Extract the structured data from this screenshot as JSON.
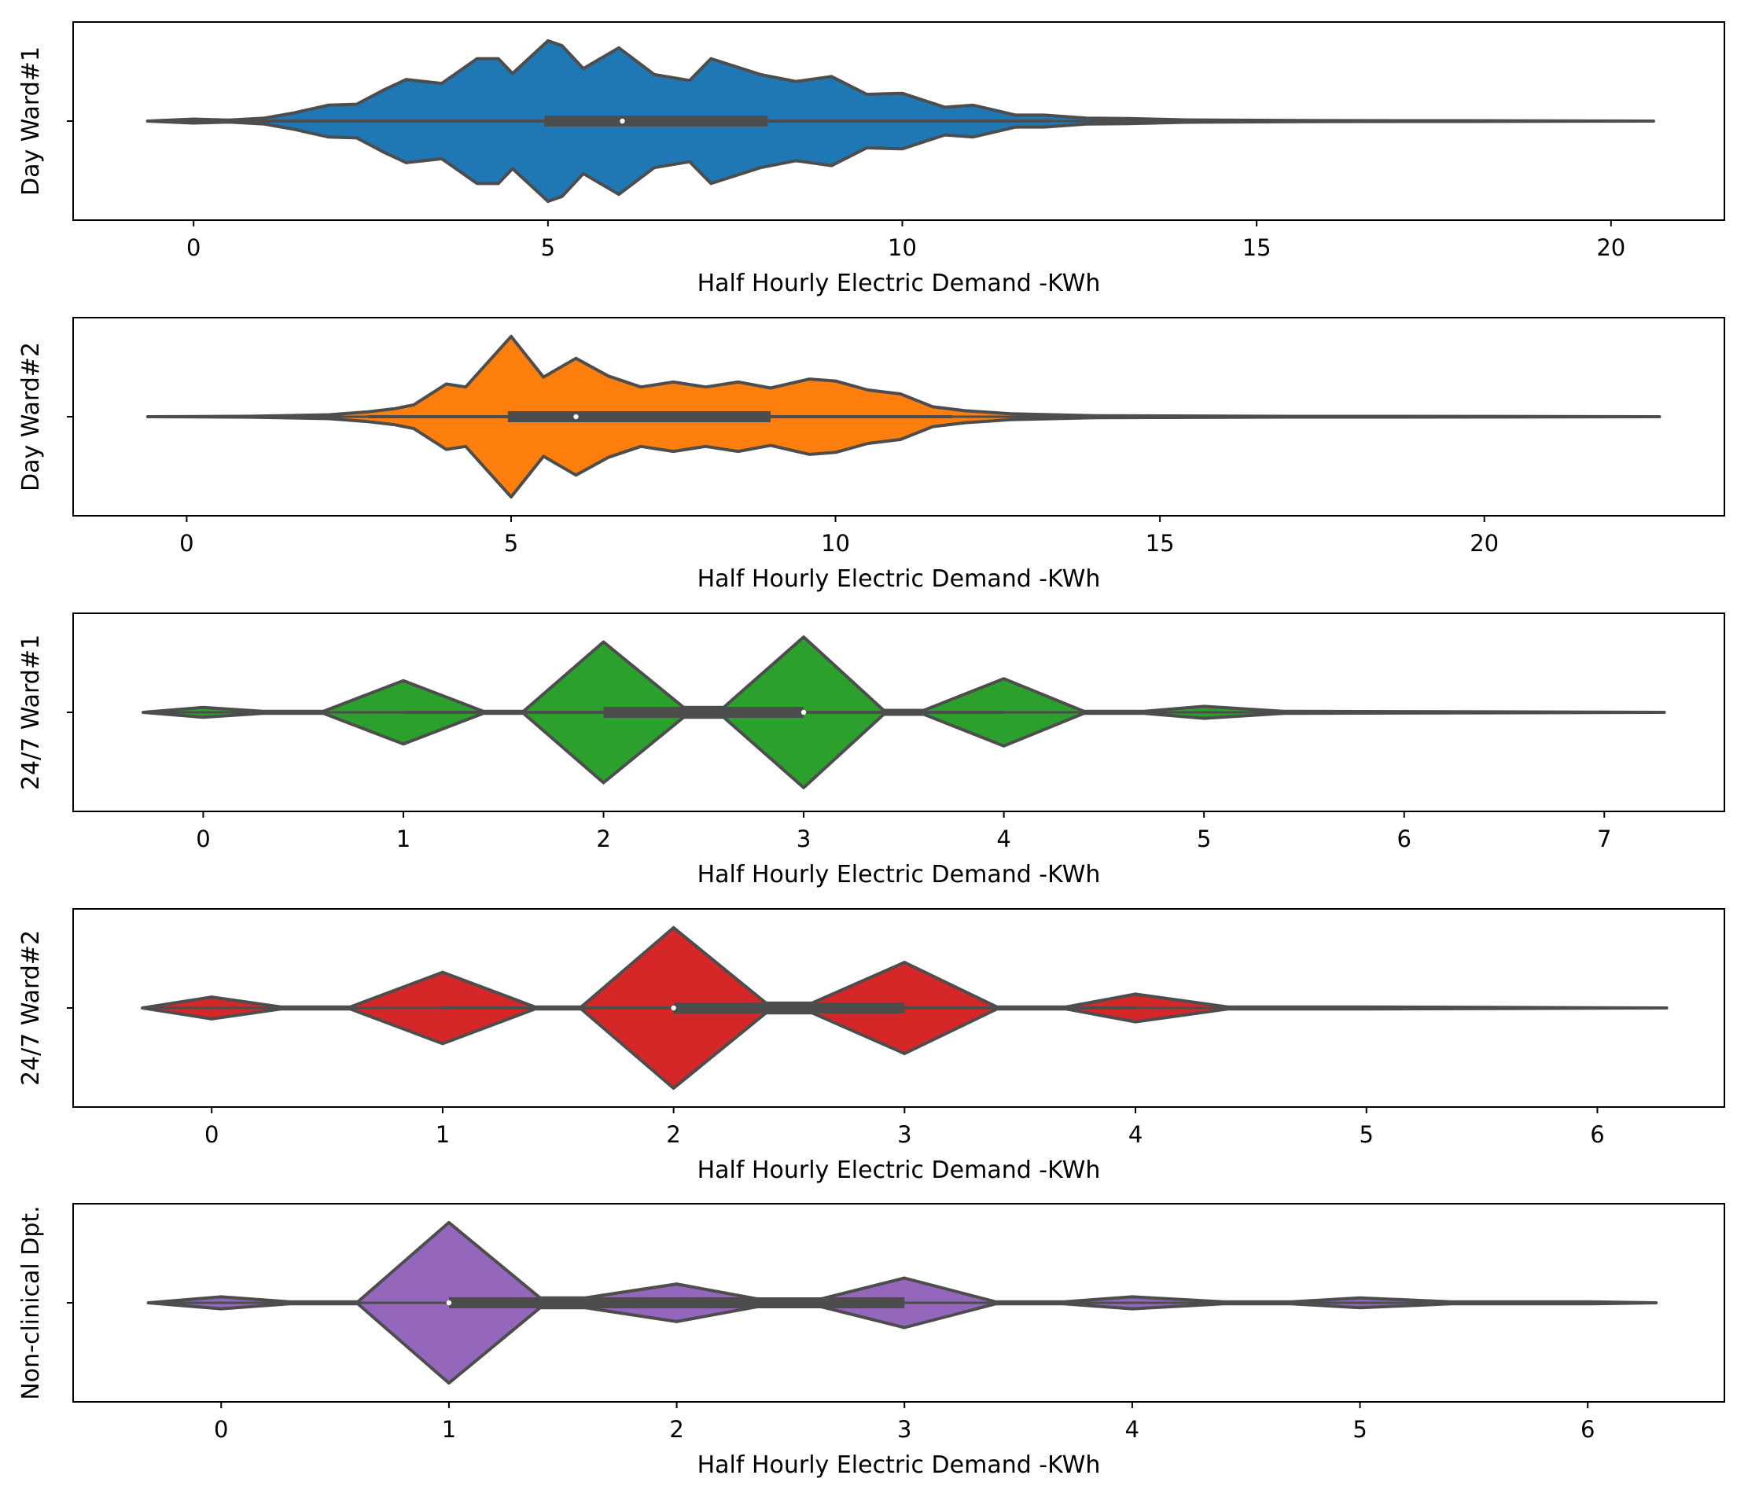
{
  "chart_data": [
    {
      "type": "violin",
      "ylabel": "Day Ward#1",
      "xlabel": "Half Hourly Electric Demand -KWh",
      "xlim": [
        -1.7,
        21.6
      ],
      "xticks": [
        0,
        5,
        10,
        15,
        20
      ],
      "xtick_labels": [
        "0",
        "5",
        "10",
        "15",
        "20"
      ],
      "color": "#1f77b4",
      "min": -0.65,
      "max": 20.6,
      "whisker_low": 0,
      "whisker_high": 12.1,
      "q1": 4.95,
      "median": 6.05,
      "q3": 8.1,
      "density": [
        [
          -0.65,
          0.0
        ],
        [
          0.0,
          0.02
        ],
        [
          0.5,
          0.01
        ],
        [
          1.0,
          0.03
        ],
        [
          1.4,
          0.08
        ],
        [
          1.9,
          0.16
        ],
        [
          2.3,
          0.17
        ],
        [
          2.7,
          0.32
        ],
        [
          3.0,
          0.42
        ],
        [
          3.5,
          0.38
        ],
        [
          4.0,
          0.63
        ],
        [
          4.3,
          0.63
        ],
        [
          4.5,
          0.48
        ],
        [
          5.0,
          0.81
        ],
        [
          5.2,
          0.76
        ],
        [
          5.5,
          0.53
        ],
        [
          6.0,
          0.74
        ],
        [
          6.5,
          0.47
        ],
        [
          7.0,
          0.41
        ],
        [
          7.3,
          0.63
        ],
        [
          8.0,
          0.47
        ],
        [
          8.5,
          0.4
        ],
        [
          9.0,
          0.45
        ],
        [
          9.5,
          0.27
        ],
        [
          10.0,
          0.28
        ],
        [
          10.6,
          0.14
        ],
        [
          11.0,
          0.16
        ],
        [
          11.6,
          0.06
        ],
        [
          12.0,
          0.06
        ],
        [
          12.6,
          0.03
        ],
        [
          13.2,
          0.025
        ],
        [
          14.0,
          0.012
        ],
        [
          16.0,
          0.005
        ],
        [
          18.0,
          0.004
        ],
        [
          20.6,
          0.0
        ]
      ]
    },
    {
      "type": "violin",
      "ylabel": "Day Ward#2",
      "xlabel": "Half Hourly Electric Demand -KWh",
      "xlim": [
        -1.75,
        23.7
      ],
      "xticks": [
        0,
        5,
        10,
        15,
        20
      ],
      "xtick_labels": [
        "0",
        "5",
        "10",
        "15",
        "20"
      ],
      "color": "#ff7f0e",
      "min": -0.6,
      "max": 22.7,
      "whisker_low": 2.8,
      "whisker_high": 11.8,
      "q1": 4.95,
      "median": 6.0,
      "q3": 9.0,
      "density": [
        [
          -0.6,
          0.0
        ],
        [
          1.0,
          0.005
        ],
        [
          2.2,
          0.02
        ],
        [
          2.8,
          0.05
        ],
        [
          3.2,
          0.08
        ],
        [
          3.5,
          0.12
        ],
        [
          4.0,
          0.33
        ],
        [
          4.3,
          0.3
        ],
        [
          5.0,
          0.81
        ],
        [
          5.5,
          0.4
        ],
        [
          6.0,
          0.59
        ],
        [
          6.5,
          0.41
        ],
        [
          7.0,
          0.3
        ],
        [
          7.5,
          0.35
        ],
        [
          8.0,
          0.3
        ],
        [
          8.5,
          0.35
        ],
        [
          9.0,
          0.29
        ],
        [
          9.6,
          0.38
        ],
        [
          10.0,
          0.36
        ],
        [
          10.5,
          0.27
        ],
        [
          11.0,
          0.23
        ],
        [
          11.5,
          0.1
        ],
        [
          12.0,
          0.06
        ],
        [
          12.7,
          0.03
        ],
        [
          14.0,
          0.01
        ],
        [
          17.0,
          0.004
        ],
        [
          20.0,
          0.003
        ],
        [
          22.7,
          0.0
        ]
      ]
    },
    {
      "type": "violin",
      "ylabel": "24/7 Ward#1",
      "xlabel": "Half Hourly Electric Demand -KWh",
      "xlim": [
        -0.65,
        7.6
      ],
      "xticks": [
        0,
        1,
        2,
        3,
        4,
        5,
        6,
        7
      ],
      "xtick_labels": [
        "0",
        "1",
        "2",
        "3",
        "4",
        "5",
        "6",
        "7"
      ],
      "color": "#2ca02c",
      "min": -0.3,
      "max": 7.3,
      "whisker_low": 1.0,
      "whisker_high": 4.0,
      "q1": 2.0,
      "median": 3.0,
      "q3": 3.0,
      "density": [
        [
          -0.3,
          0.0
        ],
        [
          0.0,
          0.05
        ],
        [
          0.3,
          0.01
        ],
        [
          0.6,
          0.01
        ],
        [
          1.0,
          0.32
        ],
        [
          1.4,
          0.01
        ],
        [
          1.6,
          0.01
        ],
        [
          2.0,
          0.71
        ],
        [
          2.4,
          0.05
        ],
        [
          2.6,
          0.05
        ],
        [
          3.0,
          0.76
        ],
        [
          3.4,
          0.02
        ],
        [
          3.6,
          0.02
        ],
        [
          4.0,
          0.34
        ],
        [
          4.4,
          0.01
        ],
        [
          4.7,
          0.01
        ],
        [
          5.0,
          0.06
        ],
        [
          5.4,
          0.01
        ],
        [
          6.0,
          0.007
        ],
        [
          7.3,
          0.0
        ]
      ]
    },
    {
      "type": "violin",
      "ylabel": "24/7 Ward#2",
      "xlabel": "Half Hourly Electric Demand -KWh",
      "xlim": [
        -0.6,
        6.55
      ],
      "xticks": [
        0,
        1,
        2,
        3,
        4,
        5,
        6
      ],
      "xtick_labels": [
        "0",
        "1",
        "2",
        "3",
        "4",
        "5",
        "6"
      ],
      "color": "#d62728",
      "min": -0.3,
      "max": 6.3,
      "whisker_low": 1.0,
      "whisker_high": 4.0,
      "q1": 2.0,
      "median": 2.0,
      "q3": 3.0,
      "density": [
        [
          -0.3,
          0.0
        ],
        [
          0.0,
          0.11
        ],
        [
          0.3,
          0.01
        ],
        [
          0.6,
          0.01
        ],
        [
          1.0,
          0.36
        ],
        [
          1.4,
          0.01
        ],
        [
          1.6,
          0.01
        ],
        [
          2.0,
          0.81
        ],
        [
          2.4,
          0.05
        ],
        [
          2.6,
          0.05
        ],
        [
          3.0,
          0.46
        ],
        [
          3.4,
          0.01
        ],
        [
          3.7,
          0.01
        ],
        [
          4.0,
          0.14
        ],
        [
          4.4,
          0.01
        ],
        [
          5.0,
          0.01
        ],
        [
          6.3,
          0.0
        ]
      ]
    },
    {
      "type": "violin",
      "ylabel": "Non-clinical Dpt.",
      "xlabel": "Half Hourly Electric Demand -KWh",
      "xlim": [
        -0.65,
        6.6
      ],
      "xticks": [
        0,
        1,
        2,
        3,
        4,
        5,
        6
      ],
      "xtick_labels": [
        "0",
        "1",
        "2",
        "3",
        "4",
        "5",
        "6"
      ],
      "color": "#9467bd",
      "min": -0.32,
      "max": 6.3,
      "whisker_low": 1.0,
      "whisker_high": 3.0,
      "q1": 1.0,
      "median": 1.0,
      "q3": 3.0,
      "density": [
        [
          -0.32,
          0.0
        ],
        [
          0.0,
          0.06
        ],
        [
          0.3,
          0.01
        ],
        [
          0.6,
          0.01
        ],
        [
          1.0,
          0.81
        ],
        [
          1.4,
          0.05
        ],
        [
          1.6,
          0.05
        ],
        [
          2.0,
          0.19
        ],
        [
          2.4,
          0.02
        ],
        [
          2.6,
          0.02
        ],
        [
          3.0,
          0.25
        ],
        [
          3.4,
          0.01
        ],
        [
          3.7,
          0.01
        ],
        [
          4.0,
          0.06
        ],
        [
          4.4,
          0.01
        ],
        [
          4.7,
          0.01
        ],
        [
          5.0,
          0.05
        ],
        [
          5.4,
          0.01
        ],
        [
          6.0,
          0.01
        ],
        [
          6.3,
          0.0
        ]
      ]
    }
  ]
}
